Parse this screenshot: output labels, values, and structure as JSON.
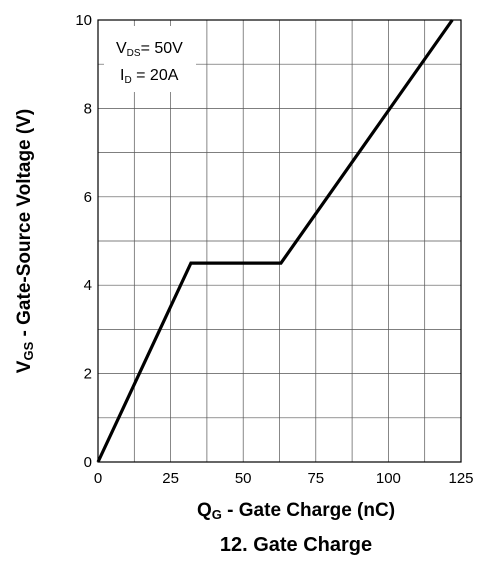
{
  "chart_data": {
    "type": "line",
    "caption": "12. Gate Charge",
    "xlabel": {
      "main": "Q",
      "sub": "G",
      "rest": " - Gate Charge (nC)"
    },
    "ylabel": {
      "main": "V",
      "sub": "GS",
      "rest": " - Gate-Source Voltage (V)"
    },
    "xlim": [
      0,
      125
    ],
    "ylim": [
      0,
      10
    ],
    "x_ticks": [
      0,
      25,
      50,
      75,
      100,
      125
    ],
    "y_ticks": [
      0,
      2,
      4,
      6,
      8,
      10
    ],
    "x_grid_step": 12.5,
    "y_grid_step": 1,
    "grid": true,
    "series": [
      {
        "color": "#000000",
        "x": [
          0,
          32,
          63,
          122
        ],
        "y": [
          0,
          4.5,
          4.5,
          10
        ]
      }
    ],
    "annotations": [
      {
        "main": "V",
        "sub": "DS",
        "rest": "= 50V"
      },
      {
        "main": "I",
        "sub": "D",
        "rest": " = 20A"
      }
    ],
    "legend_placement": "top-left"
  }
}
